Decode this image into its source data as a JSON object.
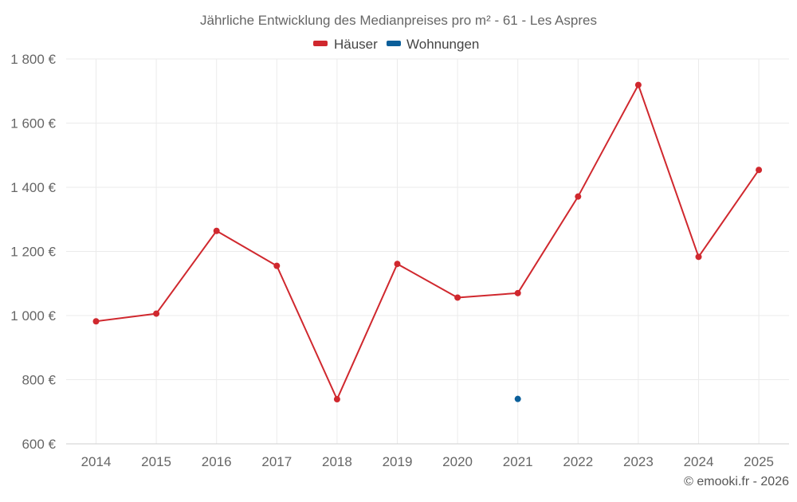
{
  "chart_data": {
    "type": "line",
    "title": "Jährliche Entwicklung des Medianpreises pro m² - 61 - Les Aspres",
    "xlabel": "",
    "ylabel": "",
    "categories": [
      "2014",
      "2015",
      "2016",
      "2017",
      "2018",
      "2019",
      "2020",
      "2021",
      "2022",
      "2023",
      "2024",
      "2025"
    ],
    "ylim": [
      600,
      1800
    ],
    "yticks": [
      600,
      800,
      1000,
      1200,
      1400,
      1600,
      1800
    ],
    "ytick_labels": [
      "600 €",
      "800 €",
      "1 000 €",
      "1 200 €",
      "1 400 €",
      "1 600 €",
      "1 800 €"
    ],
    "grid": true,
    "legend_position": "top-center",
    "series": [
      {
        "name": "Häuser",
        "color": "#d0282e",
        "values": [
          982,
          1006,
          1264,
          1155,
          739,
          1161,
          1056,
          1070,
          1371,
          1719,
          1183,
          1454
        ]
      },
      {
        "name": "Wohnungen",
        "color": "#0b5f9a",
        "values": [
          null,
          null,
          null,
          null,
          null,
          null,
          null,
          740,
          null,
          null,
          null,
          null
        ]
      }
    ],
    "credit": "© emooki.fr - 2026"
  }
}
